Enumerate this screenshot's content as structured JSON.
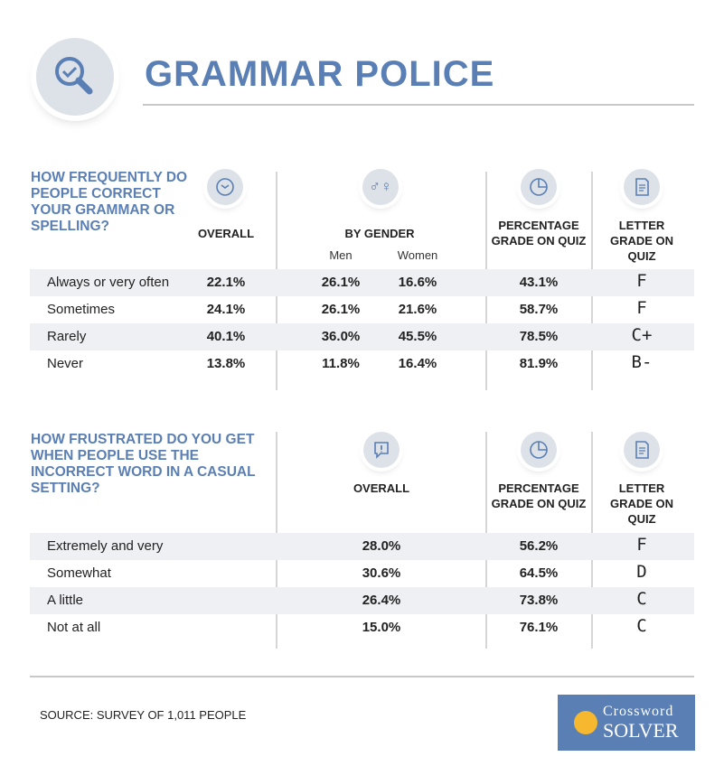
{
  "header": {
    "title": "GRAMMAR POLICE",
    "icon": "magnifier-check-icon"
  },
  "chart_data": [
    {
      "type": "table",
      "title": "How frequently do people correct your grammar or spelling?",
      "columns": [
        "Overall",
        "By Gender",
        "Percentage grade on quiz",
        "Letter grade on quiz"
      ],
      "subcolumns": [
        "Men",
        "Women"
      ],
      "rows": [
        {
          "label": "Always or very often",
          "overall": "22.1%",
          "men": "26.1%",
          "women": "16.6%",
          "pct": "43.1%",
          "letter": "F"
        },
        {
          "label": "Sometimes",
          "overall": "24.1%",
          "men": "26.1%",
          "women": "21.6%",
          "pct": "58.7%",
          "letter": "F"
        },
        {
          "label": "Rarely",
          "overall": "40.1%",
          "men": "36.0%",
          "women": "45.5%",
          "pct": "78.5%",
          "letter": "C+"
        },
        {
          "label": "Never",
          "overall": "13.8%",
          "men": "11.8%",
          "women": "16.4%",
          "pct": "81.9%",
          "letter": "B-"
        }
      ]
    },
    {
      "type": "table",
      "title": "How frustrated do you get when people use the incorrect word in a casual setting?",
      "columns": [
        "Overall",
        "Percentage grade on quiz",
        "Letter grade on quiz"
      ],
      "rows": [
        {
          "label": "Extremely and very",
          "overall": "28.0%",
          "pct": "56.2%",
          "letter": "F"
        },
        {
          "label": "Somewhat",
          "overall": "30.6%",
          "pct": "64.5%",
          "letter": "D"
        },
        {
          "label": "A little",
          "overall": "26.4%",
          "pct": "73.8%",
          "letter": "C"
        },
        {
          "label": "Not at all",
          "overall": "15.0%",
          "pct": "76.1%",
          "letter": "C"
        }
      ]
    }
  ],
  "headers": {
    "overall": "OVERALL",
    "gender": "BY GENDER",
    "men": "Men",
    "women": "Women",
    "pct": "PERCENTAGE GRADE ON QUIZ",
    "letter": "LETTER GRADE ON QUIZ"
  },
  "footer": {
    "source": "SOURCE: SURVEY OF 1,011 PEOPLE",
    "logo_top": "Crossword",
    "logo_bottom": "SOLVER"
  },
  "colors": {
    "accent": "#5a7fb5",
    "shade": "#eef0f4"
  }
}
